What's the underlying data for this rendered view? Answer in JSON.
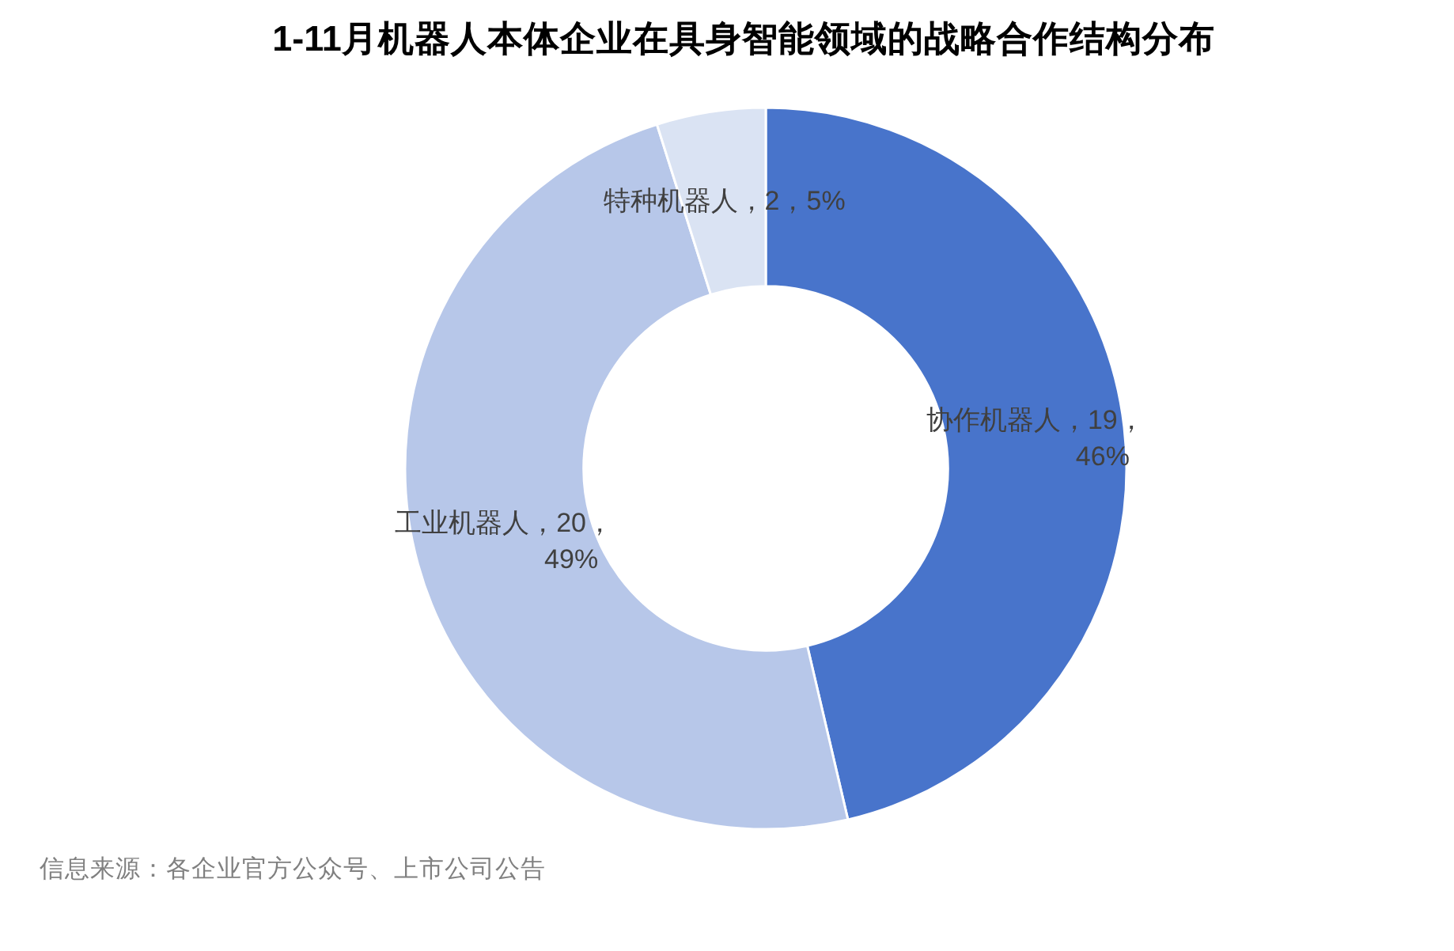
{
  "chart_data": {
    "type": "donut",
    "title": "1-11月机器人本体企业在具身智能领域的战略合作结构分布",
    "categories": [
      "协作机器人",
      "工业机器人",
      "特种机器人"
    ],
    "values": [
      19,
      20,
      2
    ],
    "colors": [
      "#4874cb",
      "#b7c7e9",
      "#dae3f3"
    ],
    "value_labels": [
      "，19，\n46%",
      "，20，\n49%",
      "，2，5%"
    ],
    "annotations": [
      "信息来源：各企业官方公众号、上市公司公告"
    ]
  }
}
